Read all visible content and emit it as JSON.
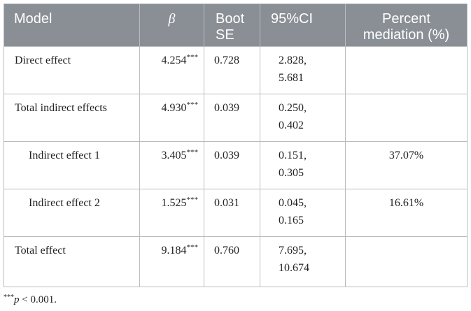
{
  "table": {
    "headers": {
      "model": "Model",
      "beta": "β",
      "se_line1": "Boot",
      "se_line2": "SE",
      "ci": "95%CI",
      "pct_line1": "Percent",
      "pct_line2": "mediation (%)"
    },
    "rows": [
      {
        "model": "Direct effect",
        "beta": "4.254",
        "sig": "***",
        "se": "0.728",
        "ci_low": "2.828,",
        "ci_high": "5.681",
        "pct": ""
      },
      {
        "model": "Total indirect effects",
        "beta": "4.930",
        "sig": "***",
        "se": "0.039",
        "ci_low": "0.250,",
        "ci_high": "0.402",
        "pct": ""
      },
      {
        "model": "Indirect effect 1",
        "beta": "3.405",
        "sig": "***",
        "se": "0.039",
        "ci_low": "0.151,",
        "ci_high": "0.305",
        "pct": "37.07%"
      },
      {
        "model": "Indirect effect 2",
        "beta": "1.525",
        "sig": "***",
        "se": "0.031",
        "ci_low": "0.045,",
        "ci_high": "0.165",
        "pct": "16.61%"
      },
      {
        "model": "Total effect",
        "beta": "9.184",
        "sig": "***",
        "se": "0.760",
        "ci_low": "7.695,",
        "ci_high": "10.674",
        "pct": ""
      }
    ]
  },
  "footnote": {
    "stars": "***",
    "p": "p",
    "text": " < 0.001."
  },
  "colors": {
    "header_bg": "#8a8f95",
    "header_text": "#ffffff",
    "border": "#b9bcbf"
  }
}
